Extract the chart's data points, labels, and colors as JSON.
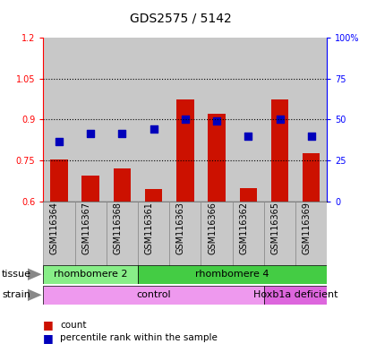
{
  "title": "GDS2575 / 5142",
  "samples": [
    "GSM116364",
    "GSM116367",
    "GSM116368",
    "GSM116361",
    "GSM116363",
    "GSM116366",
    "GSM116362",
    "GSM116365",
    "GSM116369"
  ],
  "counts": [
    0.755,
    0.695,
    0.72,
    0.645,
    0.975,
    0.92,
    0.648,
    0.975,
    0.775
  ],
  "percentiles_left": [
    0.82,
    0.85,
    0.85,
    0.865,
    0.9,
    0.895,
    0.84,
    0.9,
    0.84
  ],
  "ylim_left": [
    0.6,
    1.2
  ],
  "ylim_right": [
    0,
    100
  ],
  "yticks_left": [
    0.6,
    0.75,
    0.9,
    1.05,
    1.2
  ],
  "ytick_labels_left": [
    "0.6",
    "0.75",
    "0.9",
    "1.05",
    "1.2"
  ],
  "yticks_right": [
    0,
    25,
    50,
    75,
    100
  ],
  "ytick_labels_right": [
    "0",
    "25",
    "50",
    "75",
    "100%"
  ],
  "hgrid_lines": [
    0.75,
    0.9,
    1.05
  ],
  "tissue_groups": [
    {
      "label": "rhombomere 2",
      "start": 0,
      "end": 3,
      "color": "#88ee88"
    },
    {
      "label": "rhombomere 4",
      "start": 3,
      "end": 9,
      "color": "#44cc44"
    }
  ],
  "strain_groups": [
    {
      "label": "control",
      "start": 0,
      "end": 7,
      "color": "#ee99ee"
    },
    {
      "label": "Hoxb1a deficient",
      "start": 7,
      "end": 9,
      "color": "#dd66dd"
    }
  ],
  "bar_color": "#cc1100",
  "dot_color": "#0000bb",
  "bar_width": 0.55,
  "dot_size": 30,
  "background_color": "#ffffff",
  "plot_bg_color": "#c8c8c8",
  "tissue_label": "tissue",
  "strain_label": "strain",
  "legend_count_label": "count",
  "legend_pct_label": "percentile rank within the sample",
  "title_fontsize": 10,
  "axis_fontsize": 7,
  "label_fontsize": 8,
  "band_fontsize": 8
}
